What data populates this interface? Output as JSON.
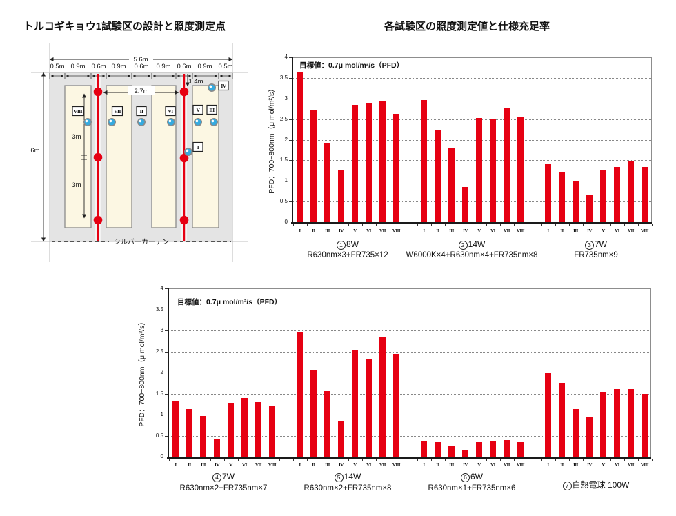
{
  "left_panel": {
    "title": "トルコギキョウ1試験区の設計と照度測定点",
    "dimensions": {
      "total_width": "5.6m",
      "total_height": "6m",
      "segments": [
        "0.5m",
        "0.9m",
        "0.6m",
        "0.9m",
        "0.6m",
        "0.9m",
        "0.6m",
        "0.9m",
        "0.5m"
      ],
      "lamp_span": "2.7m",
      "right_offset": "1.4m",
      "bed_half_1": "3m",
      "bed_half_2": "3m"
    },
    "curtain_label": "シルバーカーテン",
    "measure_labels": {
      "i": "I",
      "ii": "II",
      "iii": "III",
      "iv": "IV",
      "v": "V",
      "vi": "VI",
      "vii": "VII",
      "viii": "VIII"
    },
    "colors": {
      "lamp_line": "#e60012",
      "measure_point": "#35aadf",
      "bed_fill": "#fcf7e3",
      "area_fill": "#e4e4e4"
    }
  },
  "chart_data": [
    {
      "type": "bar",
      "title": "各試験区の照度測定値と仕様充足率",
      "ylabel": "PFD：700~800nm（μ mol/m²/s）",
      "annotation": "目標値：0.7μ mol/m²/s（PFD）",
      "ylim": [
        0,
        4
      ],
      "ytick_labels": [
        "0",
        "0.5",
        "1",
        "1.5",
        "2",
        "2.5",
        "3",
        "3.5",
        "4"
      ],
      "categories": [
        "I",
        "II",
        "III",
        "IV",
        "V",
        "VI",
        "VII",
        "VIII"
      ],
      "bar_color": "#e60012",
      "grid": "dotted-horizontal",
      "groups": [
        {
          "number": "1",
          "watt": "8W",
          "spec": "R630nm×3+FR735×12",
          "values": [
            3.65,
            2.72,
            1.93,
            1.25,
            2.84,
            2.88,
            2.95,
            2.63
          ]
        },
        {
          "number": "2",
          "watt": "14W",
          "spec": "W6000K×4+R630nm×4+FR735nm×8",
          "values": [
            2.96,
            2.22,
            1.8,
            0.85,
            2.52,
            2.5,
            2.77,
            2.56
          ]
        },
        {
          "number": "3",
          "watt": "7W",
          "spec": "FR735nm×9",
          "values": [
            1.4,
            1.23,
            0.98,
            0.67,
            1.27,
            1.34,
            1.47,
            1.34
          ]
        }
      ]
    },
    {
      "type": "bar",
      "title": "",
      "ylabel": "PFD：700~800nm（μ mol/m²/s）",
      "annotation": "目標値：0.7μ mol/m²/s（PFD）",
      "ylim": [
        0,
        4
      ],
      "ytick_labels": [
        "0",
        "0.5",
        "1",
        "1.5",
        "2",
        "2.5",
        "3",
        "3.5",
        "4"
      ],
      "categories": [
        "I",
        "II",
        "III",
        "IV",
        "V",
        "VI",
        "VII",
        "VIII"
      ],
      "bar_color": "#e60012",
      "grid": "dotted-horizontal",
      "groups": [
        {
          "number": "4",
          "watt": "7W",
          "spec": "R630nm×2+FR735nm×7",
          "values": [
            1.31,
            1.13,
            0.97,
            0.43,
            1.28,
            1.39,
            1.3,
            1.21
          ]
        },
        {
          "number": "5",
          "watt": "14W",
          "spec": "R630nm×2+FR735nm×8",
          "values": [
            2.96,
            2.07,
            1.55,
            0.85,
            2.54,
            2.31,
            2.84,
            2.45
          ]
        },
        {
          "number": "6",
          "watt": "6W",
          "spec": "R630nm×1+FR735nm×6",
          "values": [
            0.36,
            0.35,
            0.27,
            0.17,
            0.35,
            0.37,
            0.4,
            0.35
          ]
        },
        {
          "number": "7",
          "watt": "白熱電球 100W",
          "spec": "",
          "values": [
            1.99,
            1.75,
            1.13,
            0.94,
            1.54,
            1.61,
            1.61,
            1.49
          ]
        }
      ]
    }
  ]
}
